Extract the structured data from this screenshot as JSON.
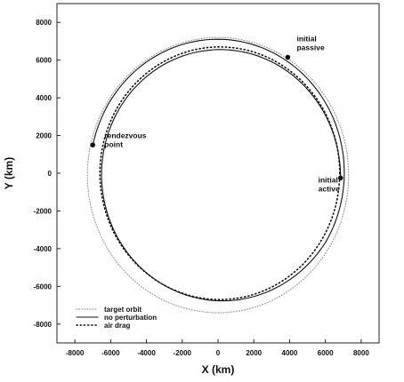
{
  "chart_data": {
    "type": "line",
    "xlabel": "X (km)",
    "ylabel": "Y (km)",
    "xlim": [
      -9000,
      9000
    ],
    "ylim": [
      -9000,
      9000
    ],
    "xticks": [
      -8000,
      -6000,
      -4000,
      -2000,
      0,
      2000,
      4000,
      6000,
      8000
    ],
    "yticks": [
      -8000,
      -6000,
      -4000,
      -2000,
      0,
      2000,
      4000,
      6000,
      8000
    ],
    "legend_position": "bottom-left",
    "series": [
      {
        "name": "target orbit",
        "style": "dotted-light",
        "shape": "circle",
        "center": [
          0,
          -100
        ],
        "radius": 7300
      },
      {
        "name": "no perturbation",
        "style": "solid",
        "shape": "spiral",
        "center": [
          0,
          0
        ],
        "start_angle_deg": -2,
        "end_angle_deg": 168,
        "start_radius": 6850,
        "end_radius": 7150,
        "path": "ccw-one-turn-to-rendezvous"
      },
      {
        "name": "air drag",
        "style": "dotted-dark",
        "shape": "circle",
        "center": [
          100,
          0
        ],
        "radius": 6700
      }
    ],
    "points": [
      {
        "label": "initial passive",
        "x": 3900,
        "y": 6150
      },
      {
        "label": "initial active",
        "x": 6850,
        "y": -250
      },
      {
        "label": "rendezvous point",
        "x": -7000,
        "y": 1500
      }
    ],
    "annotations": [
      {
        "lines": [
          "initial",
          "passive"
        ],
        "x": 4400,
        "y": 7000
      },
      {
        "lines": [
          "initial",
          "active"
        ],
        "x": 5600,
        "y": -500
      },
      {
        "lines": [
          "rendezvous",
          "point"
        ],
        "x": -6350,
        "y": 1850
      }
    ]
  }
}
